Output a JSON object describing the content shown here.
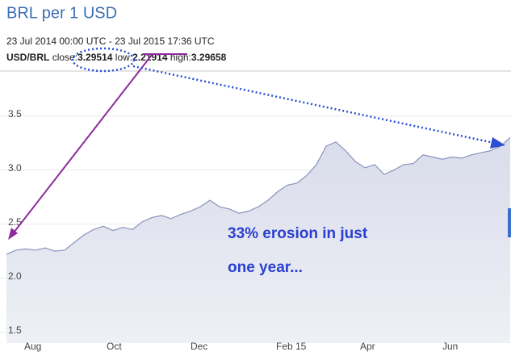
{
  "chart_data": {
    "type": "area",
    "title": "BRL per 1 USD",
    "subtitle": "23 Jul 2014 00:00 UTC - 23 Jul 2015 17:36 UTC",
    "pair": "USD/BRL",
    "stats": [
      {
        "label": "close:",
        "value": 3.29514
      },
      {
        "label": "low:",
        "value": 2.21914
      },
      {
        "label": "high:",
        "value": 3.29658
      }
    ],
    "annotation": [
      "33% erosion in just",
      "one year..."
    ],
    "x_labels": [
      "Aug",
      "Oct",
      "Dec",
      "Feb 15",
      "Apr",
      "Jun"
    ],
    "values": [
      2.22,
      2.26,
      2.27,
      2.26,
      2.28,
      2.25,
      2.26,
      2.33,
      2.4,
      2.45,
      2.48,
      2.44,
      2.47,
      2.45,
      2.52,
      2.56,
      2.58,
      2.55,
      2.59,
      2.62,
      2.66,
      2.72,
      2.66,
      2.64,
      2.6,
      2.62,
      2.66,
      2.72,
      2.8,
      2.86,
      2.88,
      2.95,
      3.05,
      3.22,
      3.26,
      3.18,
      3.08,
      3.02,
      3.05,
      2.96,
      3.0,
      3.05,
      3.06,
      3.14,
      3.12,
      3.1,
      3.12,
      3.11,
      3.14,
      3.16,
      3.18,
      3.22,
      3.3
    ],
    "color": "#8a93bb",
    "ylim": [
      1.4,
      3.915
    ],
    "yticks": [
      1.5,
      {
        "value": 2,
        "label": "2.0"
      },
      2.5,
      {
        "value": 3,
        "label": "3.0"
      },
      3.5
    ],
    "grid": true
  }
}
